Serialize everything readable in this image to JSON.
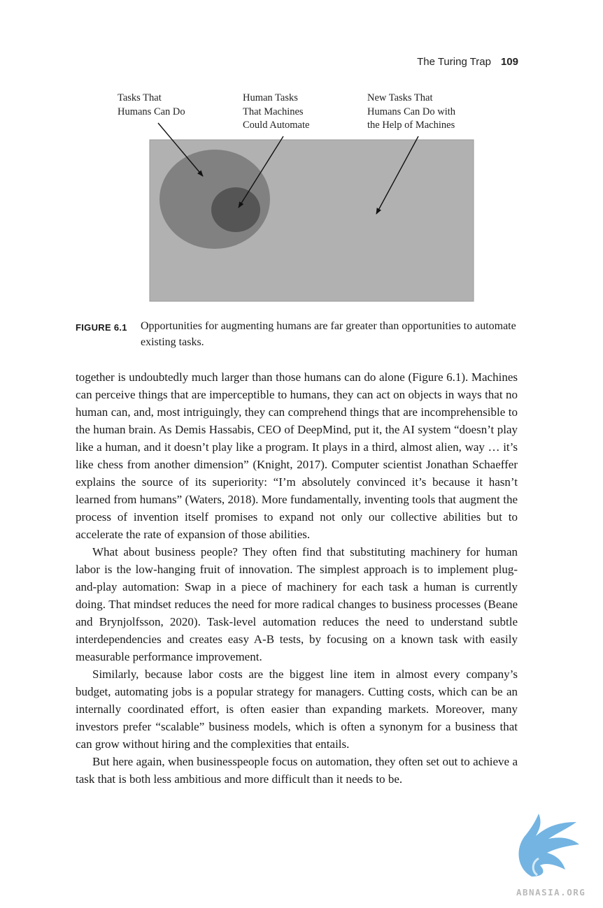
{
  "header": {
    "running_title": "The Turing Trap",
    "page_number": "109"
  },
  "figure": {
    "labels": {
      "tasks_humans": [
        "Tasks That",
        "Humans Can Do"
      ],
      "tasks_automatable": [
        "Human Tasks",
        "That Machines",
        "Could Automate"
      ],
      "tasks_new": [
        "New Tasks That",
        "Humans Can Do with",
        "the Help of Machines"
      ]
    },
    "colors": {
      "outer_region": "#b1b1b1",
      "human_circle": "#818181",
      "automate_circle": "#555555",
      "arrow": "#111111"
    },
    "caption_label": "FIGURE 6.1",
    "caption_text": "Opportunities for augmenting humans are far greater than opportunities to automate existing tasks."
  },
  "body": {
    "paragraphs": [
      "together is undoubtedly much larger than those humans can do alone (Figure 6.1). Machines can perceive things that are imperceptible to humans, they can act on objects in ways that no human can, and, most intriguingly, they can comprehend things that are incomprehensible to the human brain. As Demis Hassabis, CEO of DeepMind, put it, the AI system “doesn’t play like a human, and it doesn’t play like a program. It plays in a third, almost alien, way … it’s like chess from another dimension” (Knight, 2017). Computer scientist Jonathan Schaeffer explains the source of its superiority: “I’m absolutely convinced it’s because it hasn’t learned from humans” (Waters, 2018). More fundamentally, inventing tools that augment the process of invention itself promises to expand not only our collective abilities but to accelerate the rate of expansion of those abilities.",
      "What about business people? They often find that substituting machinery for human labor is the low-hanging fruit of innovation. The simplest approach is to implement plug-and-play automation: Swap in a piece of machinery for each task a human is currently doing. That mindset reduces the need for more radical changes to business processes (Beane and Brynjolfsson, 2020). Task-level automation reduces the need to understand subtle interdependencies and creates easy A-B tests, by focusing on a known task with easily measurable performance improvement.",
      "Similarly, because labor costs are the biggest line item in almost every company’s budget, automating jobs is a popular strategy for managers. Cutting costs, which can be an internally coordinated effort, is often easier than expanding markets. Moreover, many investors prefer “scalable” business models, which is often a synonym for a business that can grow without hiring and the complexities that entails.",
      "But here again, when businesspeople focus on automation, they often set out to achieve a task that is both less ambitious and more difficult than it needs to be."
    ]
  },
  "watermark": {
    "text": "ABNASIA.ORG",
    "color": "#5aa7dd"
  }
}
